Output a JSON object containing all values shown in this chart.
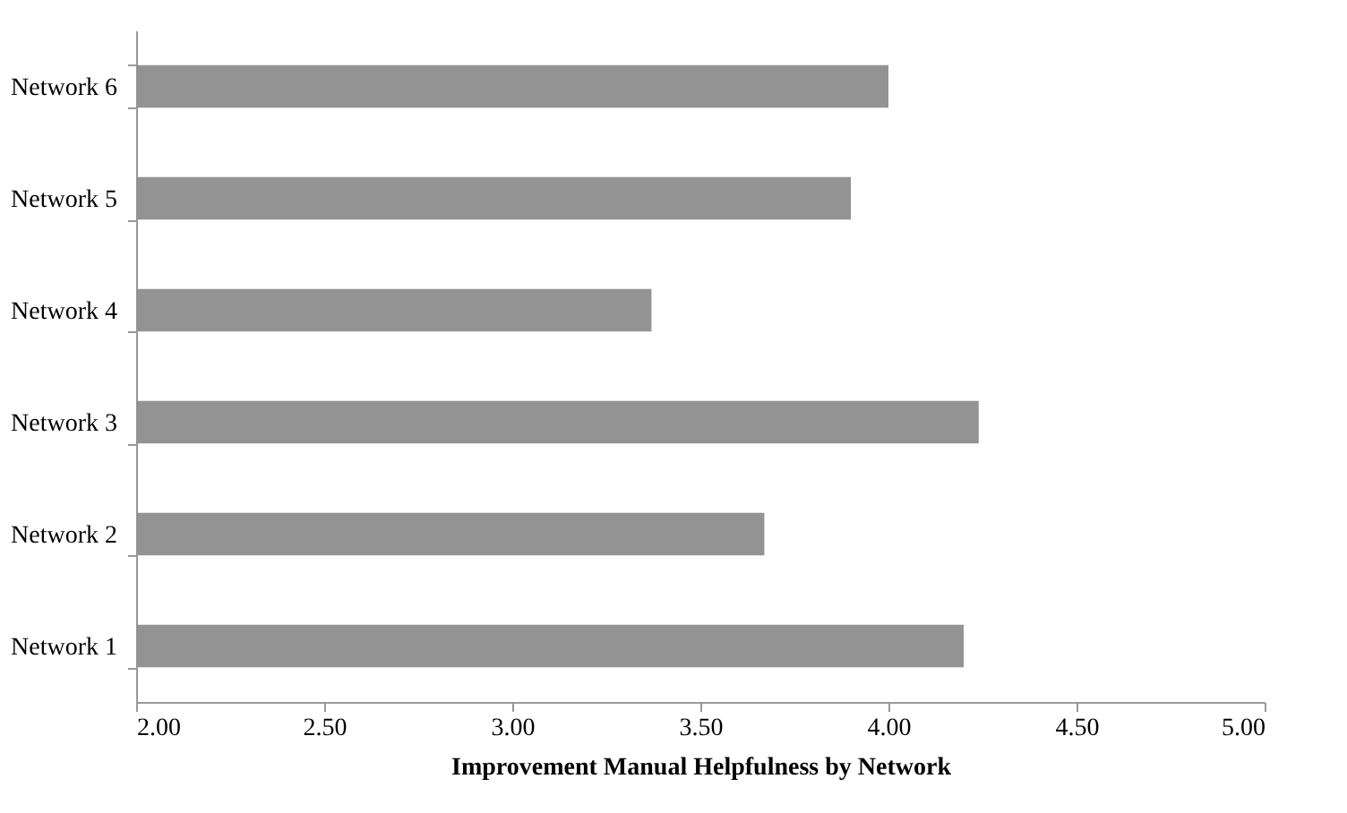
{
  "chart_data": {
    "type": "bar",
    "orientation": "horizontal",
    "xlabel": "Improvement Manual Helpfulness by Network",
    "categories": [
      "Network 6",
      "Network 5",
      "Network 4",
      "Network 3",
      "Network 2",
      "Network 1"
    ],
    "values": [
      4.0,
      3.9,
      3.37,
      4.24,
      3.67,
      4.2
    ],
    "color": "#939393",
    "xlim": [
      2,
      5
    ],
    "xticks": [
      {
        "value": 2,
        "label": "2.00"
      },
      {
        "value": 2.5,
        "label": "2.50"
      },
      {
        "value": 3,
        "label": "3.00"
      },
      {
        "value": 3.5,
        "label": "3.50"
      },
      {
        "value": 4,
        "label": "4.00"
      },
      {
        "value": 4.5,
        "label": "4.50"
      },
      {
        "value": 5,
        "label": "5.00"
      }
    ],
    "grid": false
  }
}
